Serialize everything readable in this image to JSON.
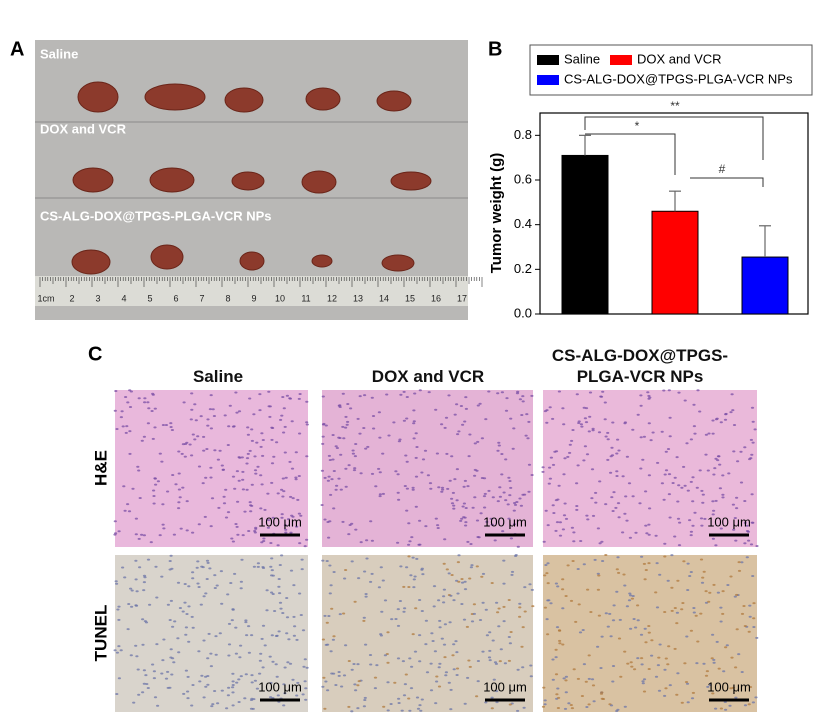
{
  "panel_a": {
    "label": "A",
    "groups": [
      "Saline",
      "DOX and VCR",
      "CS-ALG-DOX@TPGS-PLGA-VCR NPs"
    ],
    "ruler": [
      "1cm",
      "2",
      "3",
      "4",
      "5",
      "6",
      "7",
      "8",
      "9",
      "10",
      "11",
      "12",
      "13",
      "14",
      "15",
      "16",
      "17"
    ]
  },
  "panel_b": {
    "label": "B"
  },
  "chart_data": {
    "type": "bar",
    "ylabel": "Tumor weight (g)",
    "categories": [
      null,
      null,
      null
    ],
    "series": [
      {
        "name": "Saline",
        "color": "#000000"
      },
      {
        "name": "DOX and VCR",
        "color": "#ff0000"
      },
      {
        "name": "CS-ALG-DOX@TPGS-PLGA-VCR NPs",
        "color": "#0000ff"
      }
    ],
    "values": [
      0.71,
      0.46,
      0.255
    ],
    "errors": [
      0.09,
      0.09,
      0.14
    ],
    "ylim": [
      0,
      0.9
    ],
    "yticks": [
      {
        "value": 0,
        "label": "0.0"
      },
      0.2,
      0.4,
      0.6,
      0.8
    ],
    "annotations": [
      "**",
      "*",
      "#"
    ]
  },
  "panel_c": {
    "label": "C",
    "columns": [
      "Saline",
      "DOX and VCR",
      "CS-ALG-DOX@TPGS-PLGA-VCR NPs"
    ],
    "rows": [
      "H&E",
      "TUNEL"
    ],
    "scale_bar": "100 μm"
  }
}
